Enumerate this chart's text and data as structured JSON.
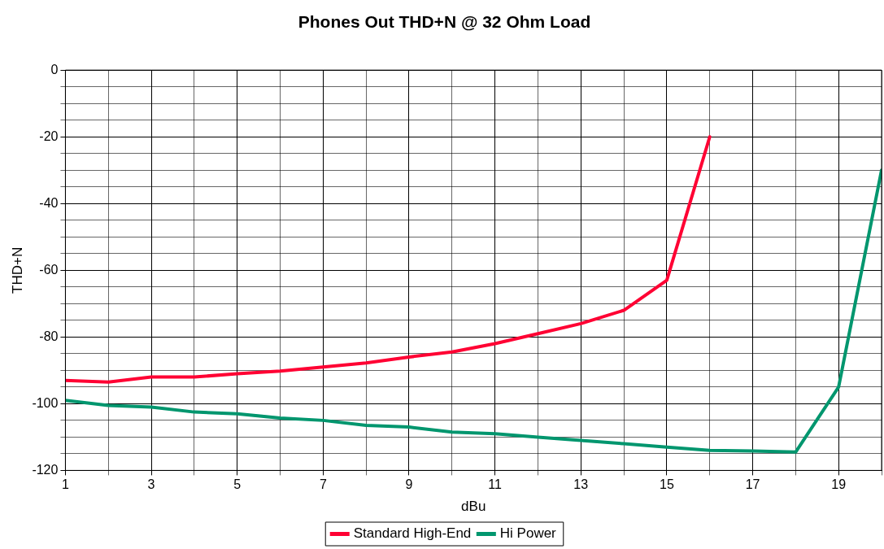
{
  "chart_data": {
    "type": "line",
    "title": "Phones Out THD+N @ 32 Ohm Load",
    "xlabel": "dBu",
    "ylabel": "THD+N",
    "x": [
      1,
      2,
      3,
      4,
      5,
      6,
      7,
      8,
      9,
      10,
      11,
      12,
      13,
      14,
      15,
      16,
      17,
      18,
      19,
      20
    ],
    "series": [
      {
        "name": "Standard High-End",
        "color": "#ff0033",
        "values": [
          -93,
          -93.5,
          -92,
          -92,
          -91,
          -90.2,
          -89,
          -87.8,
          -86,
          -84.5,
          -82,
          -79,
          -76,
          -72,
          -63,
          -20,
          null,
          null,
          null,
          null
        ]
      },
      {
        "name": "Hi Power",
        "color": "#00966e",
        "values": [
          -99,
          -100.5,
          -101,
          -102.5,
          -103,
          -104.3,
          -105,
          -106.5,
          -107,
          -108.5,
          -109,
          -110,
          -111,
          -112,
          -113,
          -114,
          -114.2,
          -114.5,
          -95,
          -30
        ]
      }
    ],
    "xlim": [
      1,
      20
    ],
    "ylim": [
      -120,
      0
    ],
    "xticks": [
      1,
      {
        "value": 2,
        "label": null
      },
      3,
      {
        "value": 4,
        "label": null
      },
      5,
      {
        "value": 6,
        "label": null
      },
      7,
      {
        "value": 8,
        "label": null
      },
      9,
      {
        "value": 10,
        "label": null
      },
      11,
      {
        "value": 12,
        "label": null
      },
      13,
      {
        "value": 14,
        "label": null
      },
      15,
      {
        "value": 16,
        "label": null
      },
      17,
      {
        "value": 18,
        "label": null
      },
      19,
      {
        "value": 20,
        "label": null
      }
    ],
    "yticks": [
      -120,
      {
        "value": -115,
        "label": null
      },
      {
        "value": -110,
        "label": null
      },
      {
        "value": -105,
        "label": null
      },
      -100,
      {
        "value": -95,
        "label": null
      },
      {
        "value": -90,
        "label": null
      },
      {
        "value": -85,
        "label": null
      },
      -80,
      {
        "value": -75,
        "label": null
      },
      {
        "value": -70,
        "label": null
      },
      {
        "value": -65,
        "label": null
      },
      -60,
      {
        "value": -55,
        "label": null
      },
      {
        "value": -50,
        "label": null
      },
      {
        "value": -45,
        "label": null
      },
      -40,
      {
        "value": -35,
        "label": null
      },
      {
        "value": -30,
        "label": null
      },
      {
        "value": -25,
        "label": null
      },
      -20,
      {
        "value": -15,
        "label": null
      },
      {
        "value": -10,
        "label": null
      },
      {
        "value": -5,
        "label": null
      },
      0
    ],
    "grid": true,
    "legend": "bottom",
    "marker": "none",
    "line_style": "solid"
  }
}
